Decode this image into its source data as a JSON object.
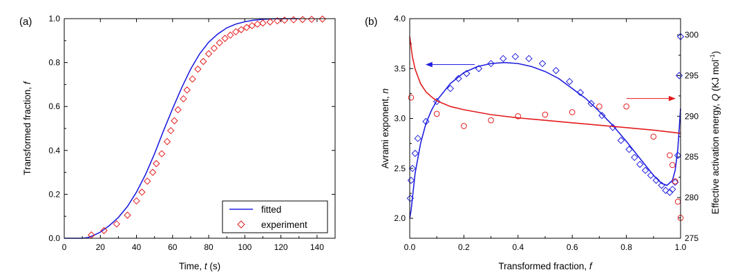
{
  "colors": {
    "blue": "#1f1fe0",
    "red": "#e31a1c",
    "axis": "#000000"
  },
  "chart_data": [
    {
      "type": "line",
      "panel_label": "(a)",
      "xlabel_prefix": "Time, ",
      "xlabel_var": "t",
      "xlabel_unit": " (s)",
      "ylabel_prefix": "Transformed fraction, ",
      "ylabel_var": "f",
      "xlim": [
        0,
        150
      ],
      "ylim": [
        0,
        1.0
      ],
      "x_ticks": [
        "0",
        "20",
        "40",
        "60",
        "80",
        "100",
        "120",
        "140"
      ],
      "y_ticks": [
        "0.0",
        "0.2",
        "0.4",
        "0.6",
        "0.8",
        "1.0"
      ],
      "legend": {
        "position": "bottom-right",
        "entries": [
          "fitted",
          "experiment"
        ]
      },
      "series": [
        {
          "name": "fitted",
          "style": "line",
          "color": "blue",
          "x": [
            0,
            5,
            10,
            13,
            16,
            20,
            25,
            30,
            35,
            40,
            45,
            50,
            55,
            60,
            65,
            70,
            75,
            80,
            85,
            90,
            95,
            100,
            105,
            110,
            115,
            120,
            125,
            130
          ],
          "y": [
            0,
            0,
            0,
            0.003,
            0.012,
            0.028,
            0.058,
            0.095,
            0.145,
            0.21,
            0.29,
            0.385,
            0.49,
            0.59,
            0.685,
            0.77,
            0.84,
            0.893,
            0.93,
            0.958,
            0.975,
            0.986,
            0.993,
            0.997,
            0.999,
            1.0,
            1.0,
            1.0
          ]
        },
        {
          "name": "experiment",
          "style": "diamond",
          "color": "red",
          "x": [
            15,
            22,
            29,
            35,
            40,
            43,
            46,
            49,
            51,
            54,
            57,
            59,
            61,
            63,
            66,
            68,
            71,
            74,
            77,
            80,
            83,
            86,
            89,
            92,
            95,
            98,
            101,
            104,
            107,
            110,
            114,
            118,
            122,
            127,
            132,
            137,
            143
          ],
          "y": [
            0.015,
            0.035,
            0.065,
            0.105,
            0.17,
            0.21,
            0.26,
            0.3,
            0.34,
            0.385,
            0.44,
            0.49,
            0.535,
            0.585,
            0.635,
            0.675,
            0.725,
            0.77,
            0.805,
            0.84,
            0.865,
            0.89,
            0.91,
            0.925,
            0.94,
            0.95,
            0.96,
            0.968,
            0.975,
            0.98,
            0.985,
            0.99,
            0.993,
            0.995,
            0.996,
            0.997,
            0.998
          ]
        }
      ]
    },
    {
      "type": "line",
      "panel_label": "(b)",
      "xlabel_prefix": "Transformed fraction, ",
      "xlabel_var": "f",
      "ylabel_prefix": "Avrami exponent, ",
      "ylabel_var": "n",
      "y2label_prefix": "Effective activation energy, ",
      "y2label_var": "Q",
      "y2label_unit": " (KJ mol",
      "y2label_sup": "-1",
      "y2label_close": ")",
      "xlim": [
        0,
        1.0
      ],
      "ylim": [
        1.8,
        4.0
      ],
      "y2lim": [
        275,
        302
      ],
      "x_ticks": [
        "0.0",
        "0.2",
        "0.4",
        "0.6",
        "0.8",
        "1.0"
      ],
      "y_ticks": [
        "2.0",
        "2.5",
        "3.0",
        "3.5",
        "4.0"
      ],
      "y2_ticks": [
        "275",
        "280",
        "285",
        "290",
        "295",
        "300"
      ],
      "series": [
        {
          "name": "Avrami exponent fitted",
          "axis": "left",
          "style": "line",
          "color": "blue",
          "x": [
            0.0,
            0.005,
            0.01,
            0.02,
            0.04,
            0.06,
            0.08,
            0.1,
            0.15,
            0.2,
            0.25,
            0.3,
            0.35,
            0.4,
            0.45,
            0.5,
            0.55,
            0.6,
            0.65,
            0.7,
            0.75,
            0.8,
            0.85,
            0.9,
            0.93,
            0.95,
            0.97,
            0.98,
            0.99,
            1.0
          ],
          "y": [
            2.0,
            2.08,
            2.2,
            2.45,
            2.75,
            2.95,
            3.08,
            3.18,
            3.35,
            3.46,
            3.52,
            3.55,
            3.56,
            3.55,
            3.52,
            3.47,
            3.4,
            3.3,
            3.2,
            3.07,
            2.93,
            2.77,
            2.6,
            2.43,
            2.35,
            2.33,
            2.38,
            2.48,
            2.7,
            3.1
          ]
        },
        {
          "name": "Avrami exponent experiment",
          "axis": "left",
          "style": "diamond",
          "color": "blue",
          "x": [
            0.002,
            0.005,
            0.01,
            0.02,
            0.03,
            0.06,
            0.1,
            0.15,
            0.18,
            0.21,
            0.255,
            0.3,
            0.345,
            0.39,
            0.44,
            0.49,
            0.54,
            0.59,
            0.63,
            0.67,
            0.71,
            0.75,
            0.78,
            0.81,
            0.83,
            0.85,
            0.87,
            0.89,
            0.91,
            0.93,
            0.945,
            0.96,
            0.97,
            0.98,
            0.99,
            0.995,
            1.0
          ],
          "y": [
            2.2,
            2.38,
            2.5,
            2.65,
            2.8,
            2.97,
            3.17,
            3.3,
            3.4,
            3.45,
            3.5,
            3.55,
            3.6,
            3.62,
            3.6,
            3.55,
            3.48,
            3.37,
            3.26,
            3.15,
            3.03,
            2.91,
            2.78,
            2.69,
            2.61,
            2.54,
            2.48,
            2.43,
            2.38,
            2.33,
            2.28,
            2.26,
            2.29,
            2.36,
            2.63,
            3.43,
            3.82
          ]
        },
        {
          "name": "Activation energy fitted",
          "axis": "right",
          "style": "line",
          "color": "red",
          "x": [
            0.0,
            0.005,
            0.01,
            0.02,
            0.04,
            0.06,
            0.08,
            0.1,
            0.15,
            0.2,
            0.3,
            0.4,
            0.5,
            0.6,
            0.7,
            0.8,
            0.9,
            0.95,
            1.0
          ],
          "y": [
            299.8,
            298.5,
            297.3,
            295.8,
            294.0,
            293.0,
            292.4,
            291.9,
            291.2,
            290.8,
            290.2,
            289.8,
            289.5,
            289.2,
            288.9,
            288.6,
            288.3,
            288.1,
            287.9
          ]
        },
        {
          "name": "Activation energy experiment",
          "axis": "right",
          "style": "circle",
          "color": "red",
          "x": [
            0.005,
            0.1,
            0.2,
            0.3,
            0.4,
            0.5,
            0.6,
            0.7,
            0.8,
            0.9,
            0.96,
            0.97,
            0.98,
            0.99,
            1.0
          ],
          "y": [
            292.3,
            290.3,
            288.8,
            289.5,
            290.0,
            290.2,
            290.5,
            291.2,
            291.2,
            287.5,
            285.2,
            284.0,
            282.0,
            279.5,
            277.5
          ]
        }
      ],
      "annotations": [
        {
          "type": "arrow",
          "color": "blue",
          "from": [
            0.24,
            3.54
          ],
          "to": [
            0.06,
            3.54
          ]
        },
        {
          "type": "arrow",
          "color": "red",
          "from": [
            0.8,
            3.2
          ],
          "to": [
            0.98,
            3.2
          ]
        }
      ]
    }
  ]
}
